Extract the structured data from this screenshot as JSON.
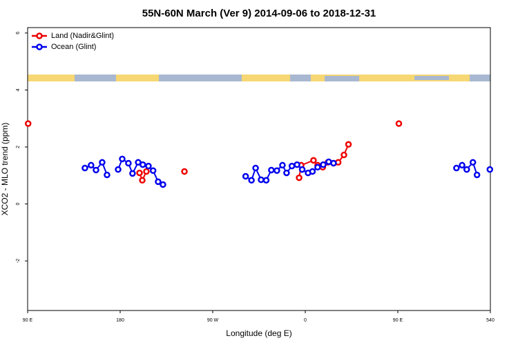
{
  "chart_data": {
    "type": "line",
    "title": "55N-60N March (Ver 9)   2014-09-06 to 2018-12-31",
    "x_label": "Longitude (deg E)",
    "y_label": "XCO2 - MLO trend (ppm)",
    "xlim": [
      90,
      540
    ],
    "ylim": [
      -3.74,
      6.19
    ],
    "xticks": [
      {
        "value": 90,
        "label": "90 E"
      },
      180,
      {
        "value": 270,
        "label": "90 W"
      },
      {
        "value": 360,
        "label": "0"
      },
      {
        "value": 450,
        "label": "90 E"
      },
      540
    ],
    "yticks": [
      -2,
      0,
      2,
      4,
      6
    ],
    "legend": "top-left",
    "series": [
      {
        "name": "Land (Nadir&Glint)",
        "color": "#ee0000",
        "x": [
          90.5,
          null,
          198.8,
          201.5,
          205.5,
          null,
          242.5,
          null,
          354,
          356,
          368,
          372,
          377,
          382,
          387.5,
          392,
          397.6,
          402,
          null,
          451
        ],
        "values": [
          2.82,
          null,
          1.09,
          0.83,
          1.14,
          null,
          1.14,
          null,
          0.92,
          1.36,
          1.53,
          1.36,
          1.29,
          1.46,
          1.43,
          1.46,
          1.72,
          2.09,
          null,
          2.82
        ]
      },
      {
        "name": "Ocean (Glint)",
        "color": "#0000ee",
        "x": [
          145.7,
          151.7,
          156.5,
          162.5,
          167.2,
          null,
          178,
          182,
          188,
          192,
          197.5,
          202,
          207.5,
          212,
          216.9,
          221.6,
          null,
          302,
          307.7,
          311.7,
          317,
          322,
          327,
          332.4,
          337.8,
          341.8,
          347,
          352,
          357,
          362.7,
          367,
          372,
          377.5,
          382.8,
          387.5,
          null,
          507,
          512.5,
          517,
          523,
          527,
          null,
          539.5
        ],
        "values": [
          1.26,
          1.36,
          1.19,
          1.46,
          1.02,
          null,
          1.21,
          1.58,
          1.43,
          1.07,
          1.46,
          1.38,
          1.33,
          1.17,
          0.78,
          0.68,
          null,
          0.97,
          0.83,
          1.26,
          0.85,
          0.83,
          1.19,
          1.17,
          1.36,
          1.09,
          1.33,
          1.38,
          1.21,
          1.09,
          1.14,
          1.29,
          1.38,
          1.48,
          1.43,
          null,
          1.26,
          1.36,
          1.21,
          1.46,
          1.02,
          null,
          1.21
        ]
      }
    ]
  }
}
